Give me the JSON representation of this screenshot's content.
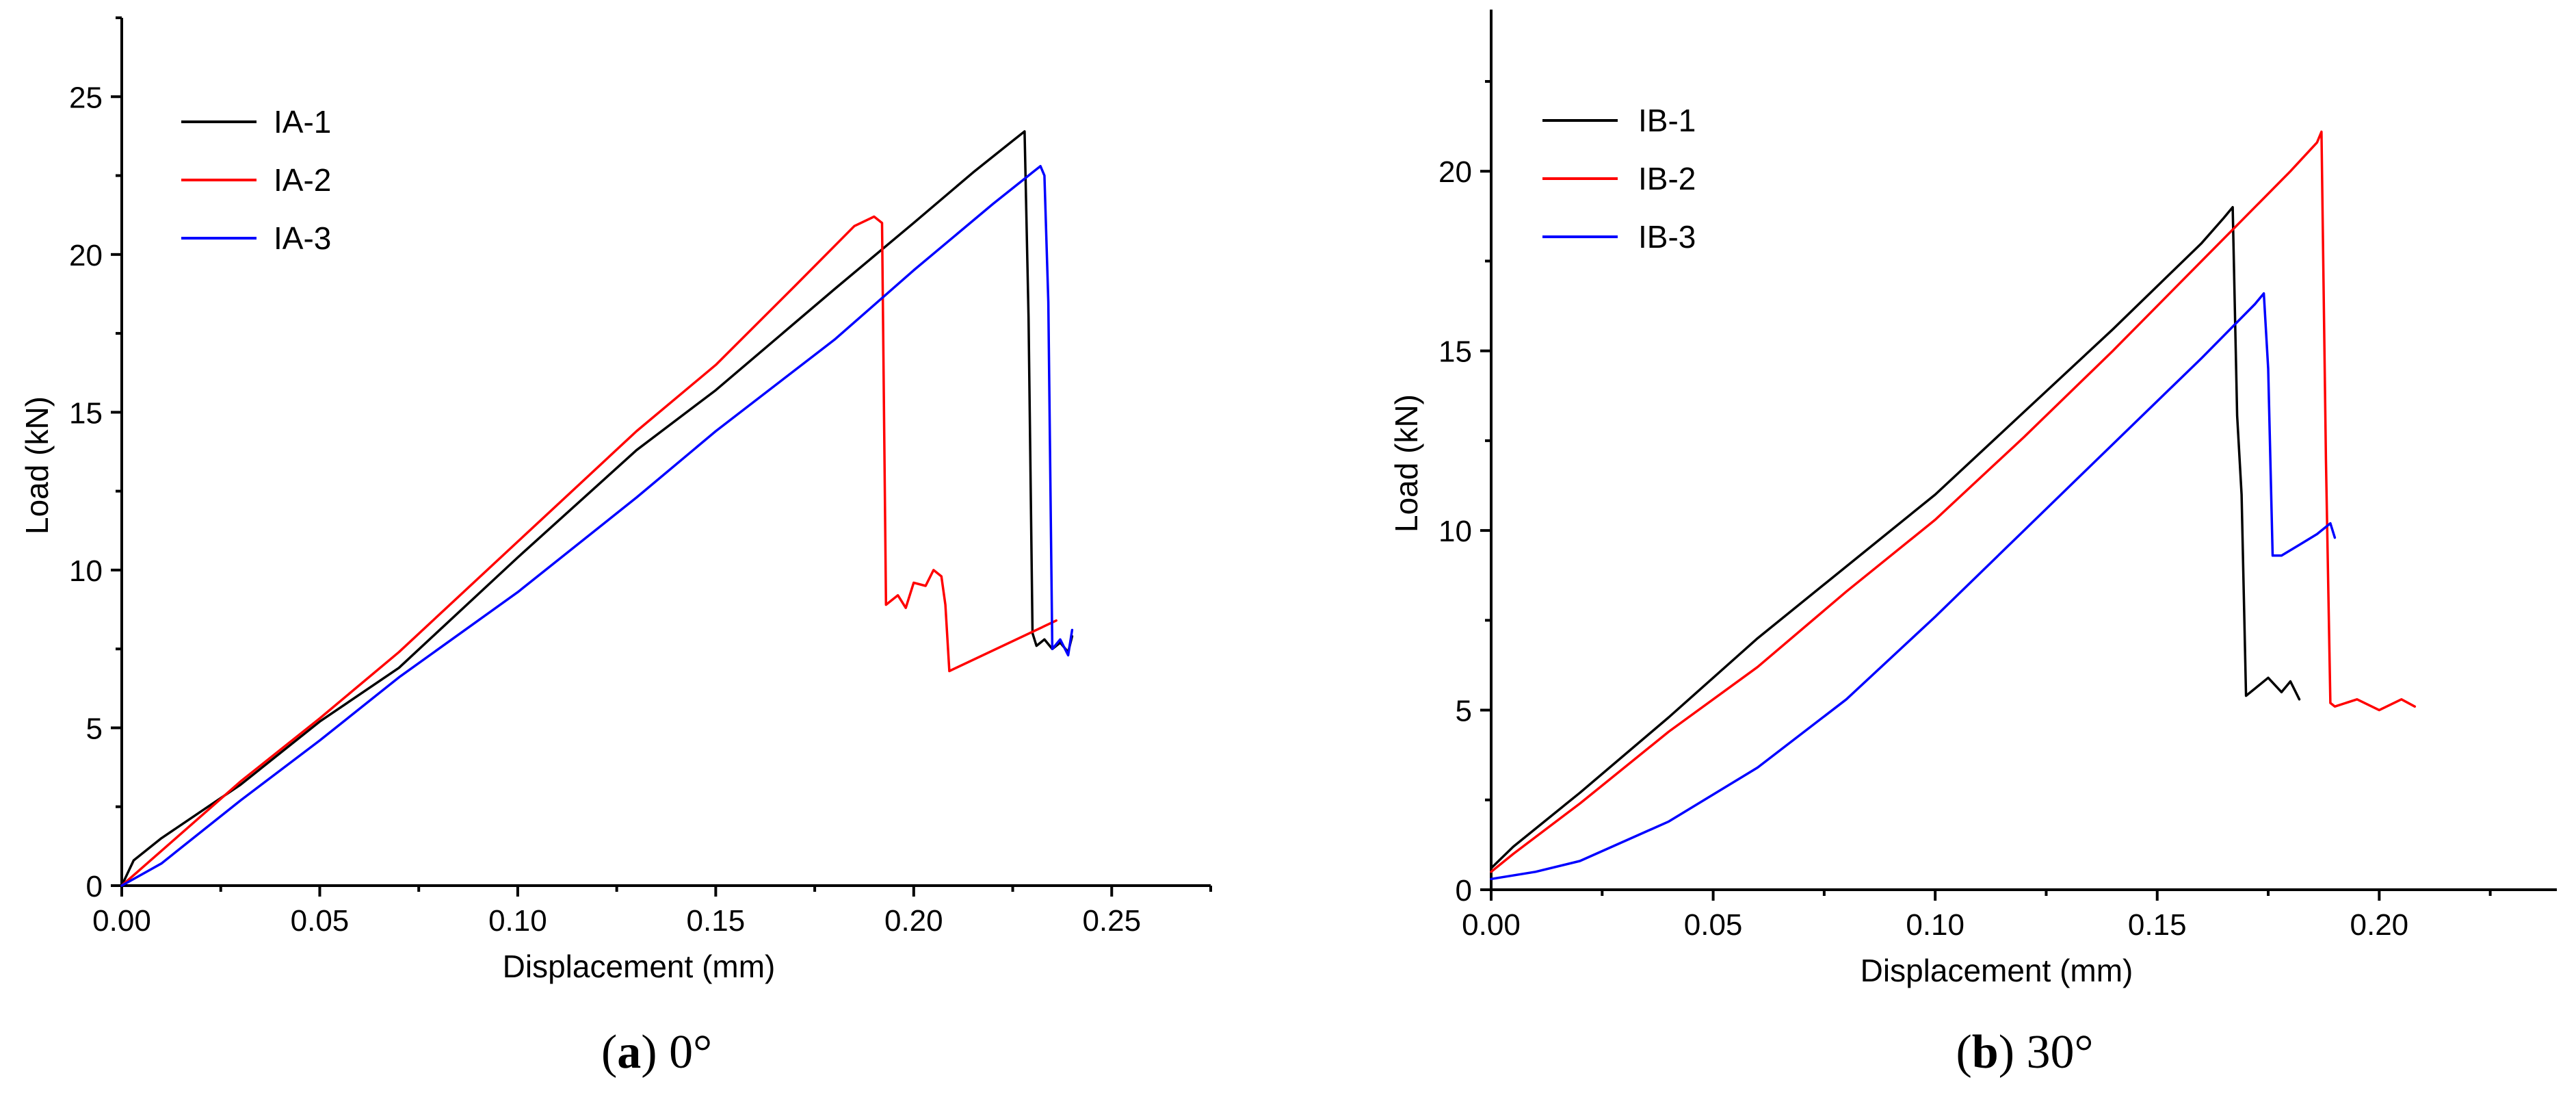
{
  "chart_data": [
    {
      "type": "line",
      "panel": "a",
      "caption": {
        "letter": "a",
        "text": "0°"
      },
      "xlabel": "Displacement (mm)",
      "ylabel": "Load (kN)",
      "xlim": [
        0,
        0.275
      ],
      "ylim": [
        0,
        27.5
      ],
      "xticks": [
        0.0,
        0.05,
        0.1,
        0.15,
        0.2,
        0.25
      ],
      "xtick_labels": [
        "0.00",
        "0.05",
        "0.10",
        "0.15",
        "0.20",
        "0.25"
      ],
      "yticks": [
        0,
        5,
        10,
        15,
        20,
        25
      ],
      "ytick_labels": [
        "0",
        "5",
        "10",
        "15",
        "20",
        "25"
      ],
      "legend_position": "top-left",
      "series": [
        {
          "name": "IA-1",
          "color": "#000000",
          "x": [
            0.0,
            0.003,
            0.01,
            0.03,
            0.05,
            0.07,
            0.1,
            0.13,
            0.15,
            0.18,
            0.2,
            0.215,
            0.225,
            0.228,
            0.229,
            0.23,
            0.231,
            0.233,
            0.235,
            0.237,
            0.239,
            0.24
          ],
          "y": [
            0.0,
            0.8,
            1.5,
            3.2,
            5.2,
            6.9,
            10.4,
            13.8,
            15.7,
            18.9,
            21.0,
            22.6,
            23.6,
            23.9,
            18.0,
            8.0,
            7.6,
            7.8,
            7.5,
            7.7,
            7.4,
            7.9
          ]
        },
        {
          "name": "IA-2",
          "color": "#ff0000",
          "x": [
            0.0,
            0.01,
            0.03,
            0.05,
            0.07,
            0.1,
            0.13,
            0.15,
            0.17,
            0.185,
            0.19,
            0.192,
            0.193,
            0.196,
            0.198,
            0.2,
            0.203,
            0.205,
            0.207,
            0.208,
            0.209,
            0.236
          ],
          "y": [
            0.0,
            1.1,
            3.3,
            5.3,
            7.4,
            10.9,
            14.4,
            16.5,
            19.0,
            20.9,
            21.2,
            21.0,
            8.9,
            9.2,
            8.8,
            9.6,
            9.5,
            10.0,
            9.8,
            8.9,
            6.8,
            8.4
          ]
        },
        {
          "name": "IA-3",
          "color": "#0000ff",
          "x": [
            0.0,
            0.01,
            0.03,
            0.05,
            0.07,
            0.1,
            0.13,
            0.15,
            0.18,
            0.2,
            0.22,
            0.23,
            0.232,
            0.233,
            0.234,
            0.235,
            0.237,
            0.239,
            0.24
          ],
          "y": [
            0.0,
            0.7,
            2.7,
            4.6,
            6.6,
            9.3,
            12.3,
            14.4,
            17.3,
            19.5,
            21.6,
            22.6,
            22.8,
            22.5,
            18.5,
            7.5,
            7.8,
            7.3,
            8.1
          ]
        }
      ]
    },
    {
      "type": "line",
      "panel": "b",
      "caption": {
        "letter": "b",
        "text": "30°"
      },
      "xlabel": "Displacement (mm)",
      "ylabel": "Load (kN)",
      "xlim": [
        0,
        0.24
      ],
      "ylim": [
        0,
        24.5
      ],
      "xticks": [
        0.0,
        0.05,
        0.1,
        0.15,
        0.2
      ],
      "xtick_labels": [
        "0.00",
        "0.05",
        "0.10",
        "0.15",
        "0.20"
      ],
      "yticks": [
        0,
        5,
        10,
        15,
        20
      ],
      "ytick_labels": [
        "0",
        "5",
        "10",
        "15",
        "20"
      ],
      "legend_position": "top-left",
      "series": [
        {
          "name": "IB-1",
          "color": "#000000",
          "x": [
            0.0,
            0.005,
            0.02,
            0.04,
            0.06,
            0.08,
            0.1,
            0.12,
            0.14,
            0.16,
            0.165,
            0.167,
            0.168,
            0.169,
            0.17,
            0.172,
            0.175,
            0.178,
            0.18,
            0.182
          ],
          "y": [
            0.6,
            1.2,
            2.7,
            4.8,
            7.0,
            9.0,
            11.0,
            13.3,
            15.6,
            18.0,
            18.7,
            19.0,
            13.2,
            11.0,
            5.4,
            5.6,
            5.9,
            5.5,
            5.8,
            5.3
          ]
        },
        {
          "name": "IB-2",
          "color": "#ff0000",
          "x": [
            0.0,
            0.005,
            0.02,
            0.04,
            0.06,
            0.08,
            0.1,
            0.12,
            0.14,
            0.16,
            0.18,
            0.186,
            0.187,
            0.188,
            0.189,
            0.19,
            0.195,
            0.2,
            0.205,
            0.208
          ],
          "y": [
            0.5,
            1.0,
            2.4,
            4.4,
            6.2,
            8.3,
            10.3,
            12.6,
            15.0,
            17.5,
            20.0,
            20.8,
            21.1,
            12.0,
            5.2,
            5.1,
            5.3,
            5.0,
            5.3,
            5.1
          ]
        },
        {
          "name": "IB-3",
          "color": "#0000ff",
          "x": [
            0.0,
            0.01,
            0.02,
            0.04,
            0.06,
            0.08,
            0.1,
            0.12,
            0.14,
            0.16,
            0.172,
            0.174,
            0.175,
            0.176,
            0.178,
            0.182,
            0.186,
            0.189,
            0.19
          ],
          "y": [
            0.3,
            0.5,
            0.8,
            1.9,
            3.4,
            5.3,
            7.6,
            10.0,
            12.4,
            14.8,
            16.3,
            16.6,
            14.5,
            9.3,
            9.3,
            9.6,
            9.9,
            10.2,
            9.8
          ]
        }
      ]
    }
  ]
}
